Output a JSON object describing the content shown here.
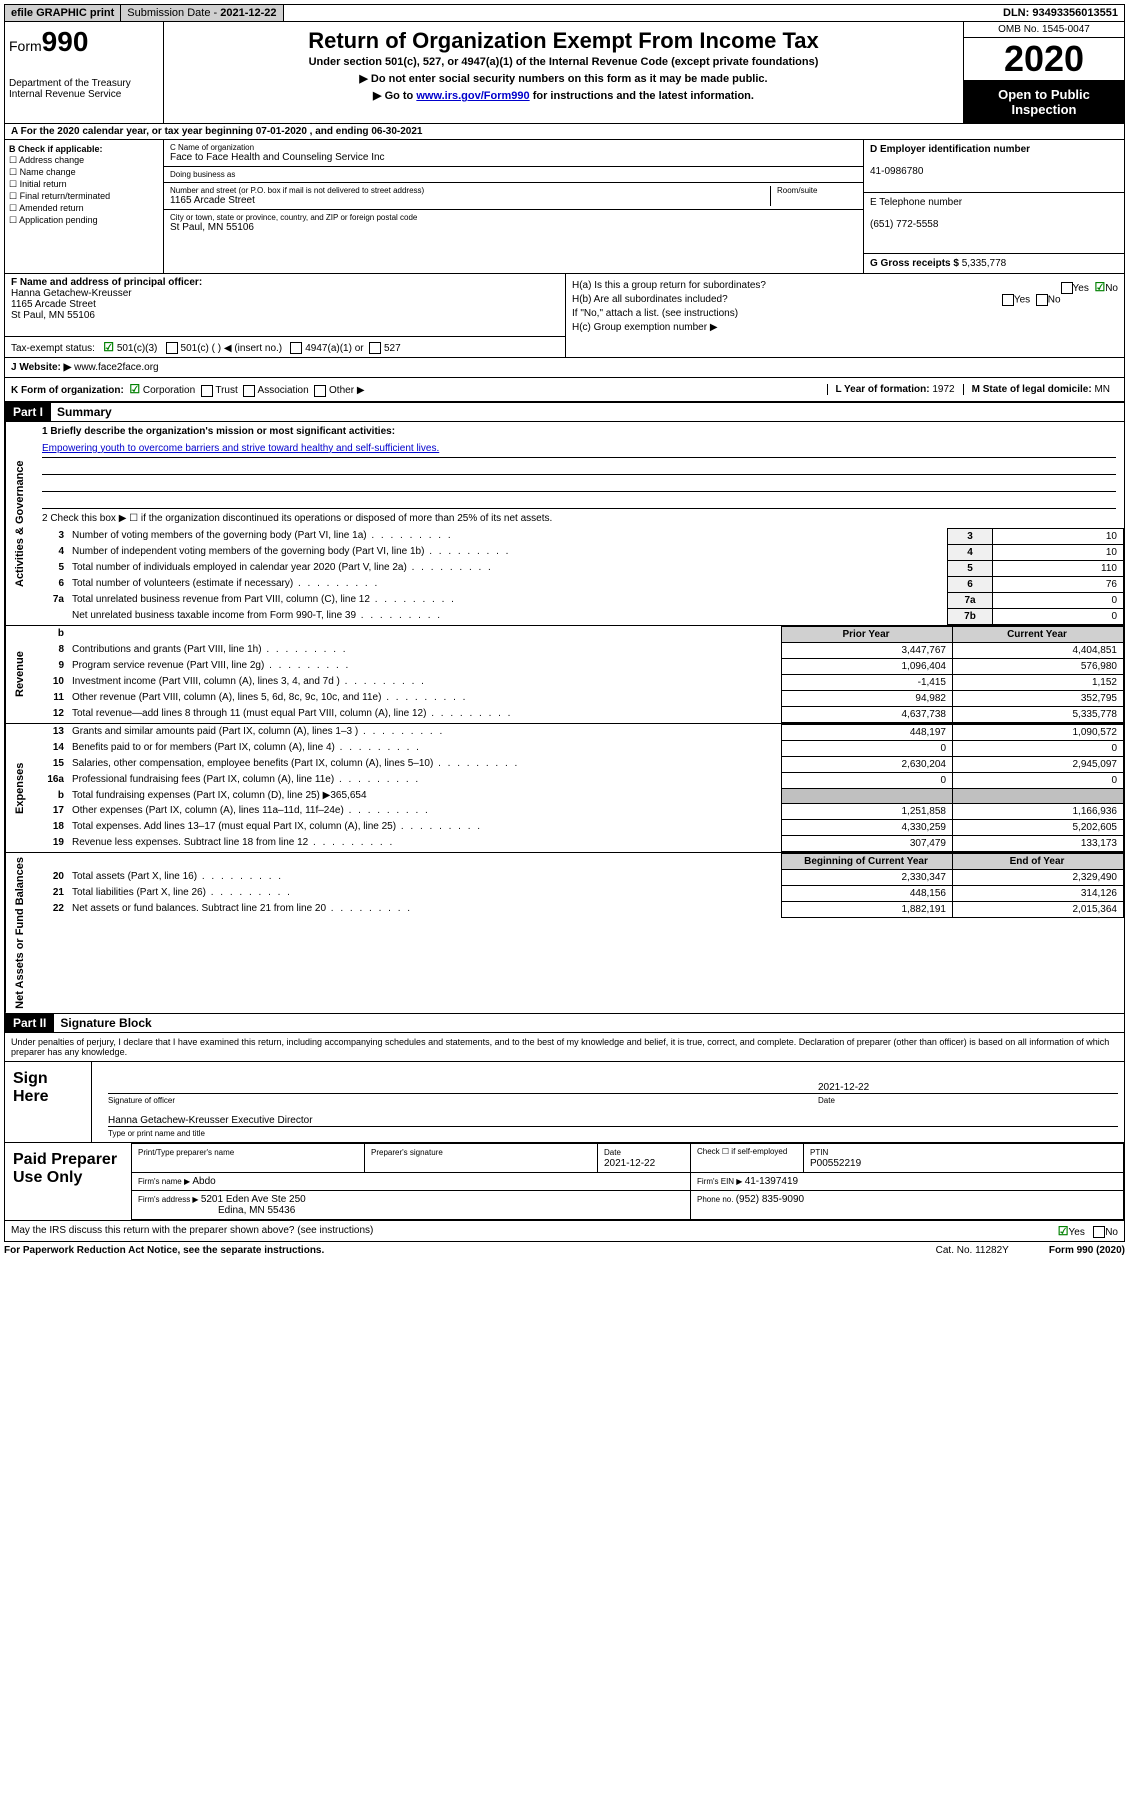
{
  "topbar": {
    "efile": "efile GRAPHIC print",
    "sub_date_label": "Submission Date - ",
    "sub_date": "2021-12-22",
    "dln_label": "DLN: ",
    "dln": "93493356013551"
  },
  "header": {
    "form_label": "Form",
    "form_num": "990",
    "dept": "Department of the Treasury\nInternal Revenue Service",
    "title": "Return of Organization Exempt From Income Tax",
    "subtitle": "Under section 501(c), 527, or 4947(a)(1) of the Internal Revenue Code (except private foundations)",
    "line1": "▶ Do not enter social security numbers on this form as it may be made public.",
    "line2_pre": "▶ Go to ",
    "line2_link": "www.irs.gov/Form990",
    "line2_post": " for instructions and the latest information.",
    "omb": "OMB No. 1545-0047",
    "year": "2020",
    "inspection": "Open to Public Inspection"
  },
  "rowA": "A For the 2020 calendar year, or tax year beginning 07-01-2020   , and ending 06-30-2021",
  "colB": {
    "heading": "B Check if applicable:",
    "items": [
      "Address change",
      "Name change",
      "Initial return",
      "Final return/terminated",
      "Amended return",
      "Application pending"
    ]
  },
  "colC": {
    "name_label": "C Name of organization",
    "name": "Face to Face Health and Counseling Service Inc",
    "dba_label": "Doing business as",
    "addr_label": "Number and street (or P.O. box if mail is not delivered to street address)",
    "addr": "1165 Arcade Street",
    "room_label": "Room/suite",
    "city_label": "City or town, state or province, country, and ZIP or foreign postal code",
    "city": "St Paul, MN  55106"
  },
  "colD": {
    "ein_label": "D Employer identification number",
    "ein": "41-0986780",
    "phone_label": "E Telephone number",
    "phone": "(651) 772-5558",
    "gross_label": "G Gross receipts $ ",
    "gross": "5,335,778"
  },
  "rowF": {
    "label": "F  Name and address of principal officer:",
    "name": "Hanna Getachew-Kreusser",
    "addr1": "1165 Arcade Street",
    "addr2": "St Paul, MN  55106",
    "tax_label": "Tax-exempt status:",
    "status1": "501(c)(3)",
    "status2": "501(c) (  ) ◀ (insert no.)",
    "status3": "4947(a)(1) or",
    "status4": "527"
  },
  "rowH": {
    "ha": "H(a)  Is this a group return for subordinates?",
    "hb": "H(b)  Are all subordinates included?",
    "hb_note": "If \"No,\" attach a list. (see instructions)",
    "hc": "H(c)  Group exemption number ▶",
    "yes": "Yes",
    "no": "No"
  },
  "rowJ": {
    "label": "J   Website: ▶ ",
    "site": "www.face2face.org"
  },
  "rowK": {
    "label": "K Form of organization:",
    "opts": [
      "Corporation",
      "Trust",
      "Association",
      "Other ▶"
    ],
    "l_label": "L Year of formation: ",
    "l_val": "1972",
    "m_label": "M State of legal domicile: ",
    "m_val": "MN"
  },
  "part1": {
    "header": "Part I",
    "title": "Summary",
    "line1_label": "1   Briefly describe the organization's mission or most significant activities:",
    "mission": "Empowering youth to overcome barriers and strive toward healthy and self-sufficient lives.",
    "line2": "2   Check this box ▶ ☐  if the organization discontinued its operations or disposed of more than 25% of its net assets.",
    "governance_label": "Activities & Governance",
    "revenue_label": "Revenue",
    "expenses_label": "Expenses",
    "netassets_label": "Net Assets or Fund Balances"
  },
  "gov_rows": [
    {
      "n": "3",
      "label": "Number of voting members of the governing body (Part VI, line 1a)",
      "box": "3",
      "val": "10"
    },
    {
      "n": "4",
      "label": "Number of independent voting members of the governing body (Part VI, line 1b)",
      "box": "4",
      "val": "10"
    },
    {
      "n": "5",
      "label": "Total number of individuals employed in calendar year 2020 (Part V, line 2a)",
      "box": "5",
      "val": "110"
    },
    {
      "n": "6",
      "label": "Total number of volunteers (estimate if necessary)",
      "box": "6",
      "val": "76"
    },
    {
      "n": "7a",
      "label": "Total unrelated business revenue from Part VIII, column (C), line 12",
      "box": "7a",
      "val": "0"
    },
    {
      "n": "",
      "label": "Net unrelated business taxable income from Form 990-T, line 39",
      "box": "7b",
      "val": "0"
    }
  ],
  "rev_header": {
    "b": "b",
    "prior": "Prior Year",
    "current": "Current Year"
  },
  "rev_rows": [
    {
      "n": "8",
      "label": "Contributions and grants (Part VIII, line 1h)",
      "p": "3,447,767",
      "c": "4,404,851"
    },
    {
      "n": "9",
      "label": "Program service revenue (Part VIII, line 2g)",
      "p": "1,096,404",
      "c": "576,980"
    },
    {
      "n": "10",
      "label": "Investment income (Part VIII, column (A), lines 3, 4, and 7d )",
      "p": "-1,415",
      "c": "1,152"
    },
    {
      "n": "11",
      "label": "Other revenue (Part VIII, column (A), lines 5, 6d, 8c, 9c, 10c, and 11e)",
      "p": "94,982",
      "c": "352,795"
    },
    {
      "n": "12",
      "label": "Total revenue—add lines 8 through 11 (must equal Part VIII, column (A), line 12)",
      "p": "4,637,738",
      "c": "5,335,778"
    }
  ],
  "exp_rows": [
    {
      "n": "13",
      "label": "Grants and similar amounts paid (Part IX, column (A), lines 1–3 )",
      "p": "448,197",
      "c": "1,090,572"
    },
    {
      "n": "14",
      "label": "Benefits paid to or for members (Part IX, column (A), line 4)",
      "p": "0",
      "c": "0"
    },
    {
      "n": "15",
      "label": "Salaries, other compensation, employee benefits (Part IX, column (A), lines 5–10)",
      "p": "2,630,204",
      "c": "2,945,097"
    },
    {
      "n": "16a",
      "label": "Professional fundraising fees (Part IX, column (A), line 11e)",
      "p": "0",
      "c": "0"
    },
    {
      "n": "b",
      "label": "Total fundraising expenses (Part IX, column (D), line 25) ▶365,654",
      "p": "",
      "c": "",
      "shaded": true
    },
    {
      "n": "17",
      "label": "Other expenses (Part IX, column (A), lines 11a–11d, 11f–24e)",
      "p": "1,251,858",
      "c": "1,166,936"
    },
    {
      "n": "18",
      "label": "Total expenses. Add lines 13–17 (must equal Part IX, column (A), line 25)",
      "p": "4,330,259",
      "c": "5,202,605"
    },
    {
      "n": "19",
      "label": "Revenue less expenses. Subtract line 18 from line 12",
      "p": "307,479",
      "c": "133,173"
    }
  ],
  "net_header": {
    "begin": "Beginning of Current Year",
    "end": "End of Year"
  },
  "net_rows": [
    {
      "n": "20",
      "label": "Total assets (Part X, line 16)",
      "p": "2,330,347",
      "c": "2,329,490"
    },
    {
      "n": "21",
      "label": "Total liabilities (Part X, line 26)",
      "p": "448,156",
      "c": "314,126"
    },
    {
      "n": "22",
      "label": "Net assets or fund balances. Subtract line 21 from line 20",
      "p": "1,882,191",
      "c": "2,015,364"
    }
  ],
  "part2": {
    "header": "Part II",
    "title": "Signature Block",
    "declaration": "Under penalties of perjury, I declare that I have examined this return, including accompanying schedules and statements, and to the best of my knowledge and belief, it is true, correct, and complete. Declaration of preparer (other than officer) is based on all information of which preparer has any knowledge.",
    "sign_here": "Sign Here",
    "sig_officer": "Signature of officer",
    "sig_date": "2021-12-22",
    "date_label": "Date",
    "officer_name": "Hanna Getachew-Kreusser  Executive Director",
    "type_label": "Type or print name and title",
    "paid_prep": "Paid Preparer Use Only",
    "prep_name_label": "Print/Type preparer's name",
    "prep_sig_label": "Preparer's signature",
    "prep_date": "2021-12-22",
    "prep_check_label": "Check ☐ if self-employed",
    "ptin_label": "PTIN",
    "ptin": "P00552219",
    "firm_name_label": "Firm's name   ▶ ",
    "firm_name": "Abdo",
    "firm_ein_label": "Firm's EIN ▶ ",
    "firm_ein": "41-1397419",
    "firm_addr_label": "Firm's address ▶ ",
    "firm_addr1": "5201 Eden Ave Ste 250",
    "firm_addr2": "Edina, MN  55436",
    "firm_phone_label": "Phone no. ",
    "firm_phone": "(952) 835-9090",
    "discuss": "May the IRS discuss this return with the preparer shown above? (see instructions)"
  },
  "footer": {
    "paperwork": "For Paperwork Reduction Act Notice, see the separate instructions.",
    "cat": "Cat. No. 11282Y",
    "form": "Form 990 (2020)"
  }
}
